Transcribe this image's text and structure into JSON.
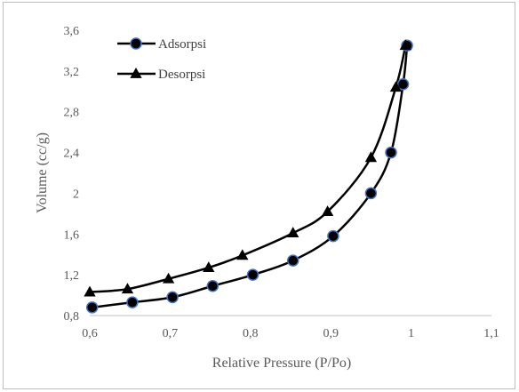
{
  "chart_data": {
    "type": "scatter",
    "xlabel": "Relative Pressure (P/Po)",
    "ylabel": "Volume (cc/g)",
    "xlim": [
      0.6,
      1.1
    ],
    "ylim": [
      0.8,
      3.6
    ],
    "x_ticks": [
      "0,6",
      "0,7",
      "0,8",
      "0,9",
      "1",
      "1,1"
    ],
    "y_ticks": [
      "0,8",
      "1,2",
      "1,6",
      "2",
      "2,4",
      "2,8",
      "3,2",
      "3,6"
    ],
    "legend_position": "top-left",
    "grid": false,
    "line_style": "smooth",
    "series": [
      {
        "name": "Adsorpsi",
        "marker": "circle",
        "marker_color": "#000000",
        "marker_edge_color": "#4472c4",
        "line_color": "#000000",
        "points": [
          {
            "x": 0.603,
            "y": 0.88
          },
          {
            "x": 0.653,
            "y": 0.93
          },
          {
            "x": 0.703,
            "y": 0.98
          },
          {
            "x": 0.753,
            "y": 1.09
          },
          {
            "x": 0.803,
            "y": 1.2
          },
          {
            "x": 0.853,
            "y": 1.34
          },
          {
            "x": 0.903,
            "y": 1.58
          },
          {
            "x": 0.95,
            "y": 2.0
          },
          {
            "x": 0.975,
            "y": 2.4
          },
          {
            "x": 0.99,
            "y": 3.07
          },
          {
            "x": 0.995,
            "y": 3.45
          }
        ]
      },
      {
        "name": "Desorpsi",
        "marker": "triangle",
        "marker_color": "#000000",
        "line_color": "#000000",
        "points": [
          {
            "x": 0.6,
            "y": 1.03
          },
          {
            "x": 0.647,
            "y": 1.06
          },
          {
            "x": 0.698,
            "y": 1.16
          },
          {
            "x": 0.748,
            "y": 1.27
          },
          {
            "x": 0.79,
            "y": 1.39
          },
          {
            "x": 0.853,
            "y": 1.61
          },
          {
            "x": 0.896,
            "y": 1.82
          },
          {
            "x": 0.95,
            "y": 2.35
          },
          {
            "x": 0.981,
            "y": 3.04
          },
          {
            "x": 0.993,
            "y": 3.45
          }
        ]
      }
    ]
  }
}
